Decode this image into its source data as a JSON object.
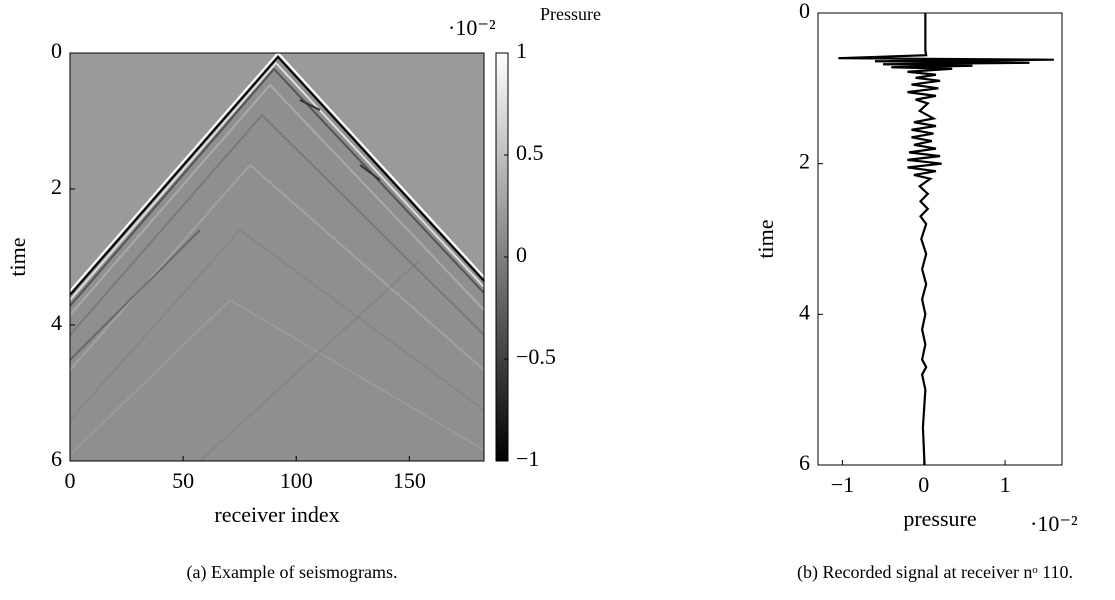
{
  "chart_data": [
    {
      "type": "heatmap",
      "xlabel": "receiver index",
      "ylabel": "time",
      "caption": "(a) Example of seismograms.",
      "xlim": [
        0,
        183
      ],
      "xticks": [
        0,
        50,
        100,
        150
      ],
      "ylim": [
        0,
        6
      ],
      "yticks": [
        0,
        2,
        4,
        6
      ],
      "y_inverted": true,
      "colorbar": {
        "label": "Pressure",
        "multiplier": "·10⁻²",
        "lim": [
          -1,
          1
        ],
        "ticks": [
          {
            "value": -1,
            "label": "−1"
          },
          {
            "value": -0.5,
            "label": "−0.5"
          },
          0,
          0.5,
          1
        ]
      }
    },
    {
      "type": "line",
      "xlabel": "pressure",
      "ylabel": "time",
      "multiplier": "·10⁻²",
      "caption": "(b) Recorded signal at receiver nᵒ 110.",
      "xlim": [
        -1.3,
        1.7
      ],
      "xticks": [
        {
          "value": -1,
          "label": "−1"
        },
        0,
        1
      ],
      "ylim": [
        0,
        6
      ],
      "yticks": [
        0,
        2,
        4,
        6
      ],
      "y_inverted": true,
      "y": [
        0,
        0.5,
        0.56,
        0.6,
        0.62,
        0.64,
        0.66,
        0.68,
        0.7,
        0.72,
        0.74,
        0.78,
        0.82,
        0.86,
        0.9,
        0.95,
        1.0,
        1.05,
        1.1,
        1.15,
        1.2,
        1.3,
        1.4,
        1.45,
        1.5,
        1.55,
        1.6,
        1.65,
        1.7,
        1.75,
        1.8,
        1.85,
        1.9,
        1.95,
        2.0,
        2.05,
        2.1,
        2.15,
        2.2,
        2.3,
        2.4,
        2.5,
        2.6,
        2.7,
        2.8,
        3.0,
        3.2,
        3.4,
        3.6,
        3.8,
        4.0,
        4.2,
        4.4,
        4.6,
        4.7,
        4.8,
        5.0,
        5.5,
        6
      ],
      "series": [
        {
          "color": "#000000",
          "values": [
            0.02,
            0.02,
            0.03,
            -1.05,
            1.6,
            -0.6,
            1.3,
            -0.5,
            0.6,
            -0.4,
            0.35,
            -0.2,
            0.15,
            -0.1,
            0.2,
            -0.15,
            0.18,
            -0.2,
            0.15,
            -0.1,
            0.05,
            -0.05,
            0.12,
            -0.12,
            0.15,
            -0.15,
            0.12,
            -0.15,
            0.1,
            -0.12,
            0.15,
            -0.18,
            0.2,
            -0.2,
            0.22,
            -0.2,
            0.15,
            -0.12,
            0.08,
            -0.05,
            0.05,
            -0.04,
            0.05,
            -0.04,
            0.03,
            -0.03,
            0.03,
            -0.02,
            0.03,
            -0.02,
            0.02,
            -0.02,
            0.02,
            -0.02,
            0.03,
            -0.02,
            0.02,
            -0.01,
            0.01
          ]
        }
      ]
    }
  ]
}
